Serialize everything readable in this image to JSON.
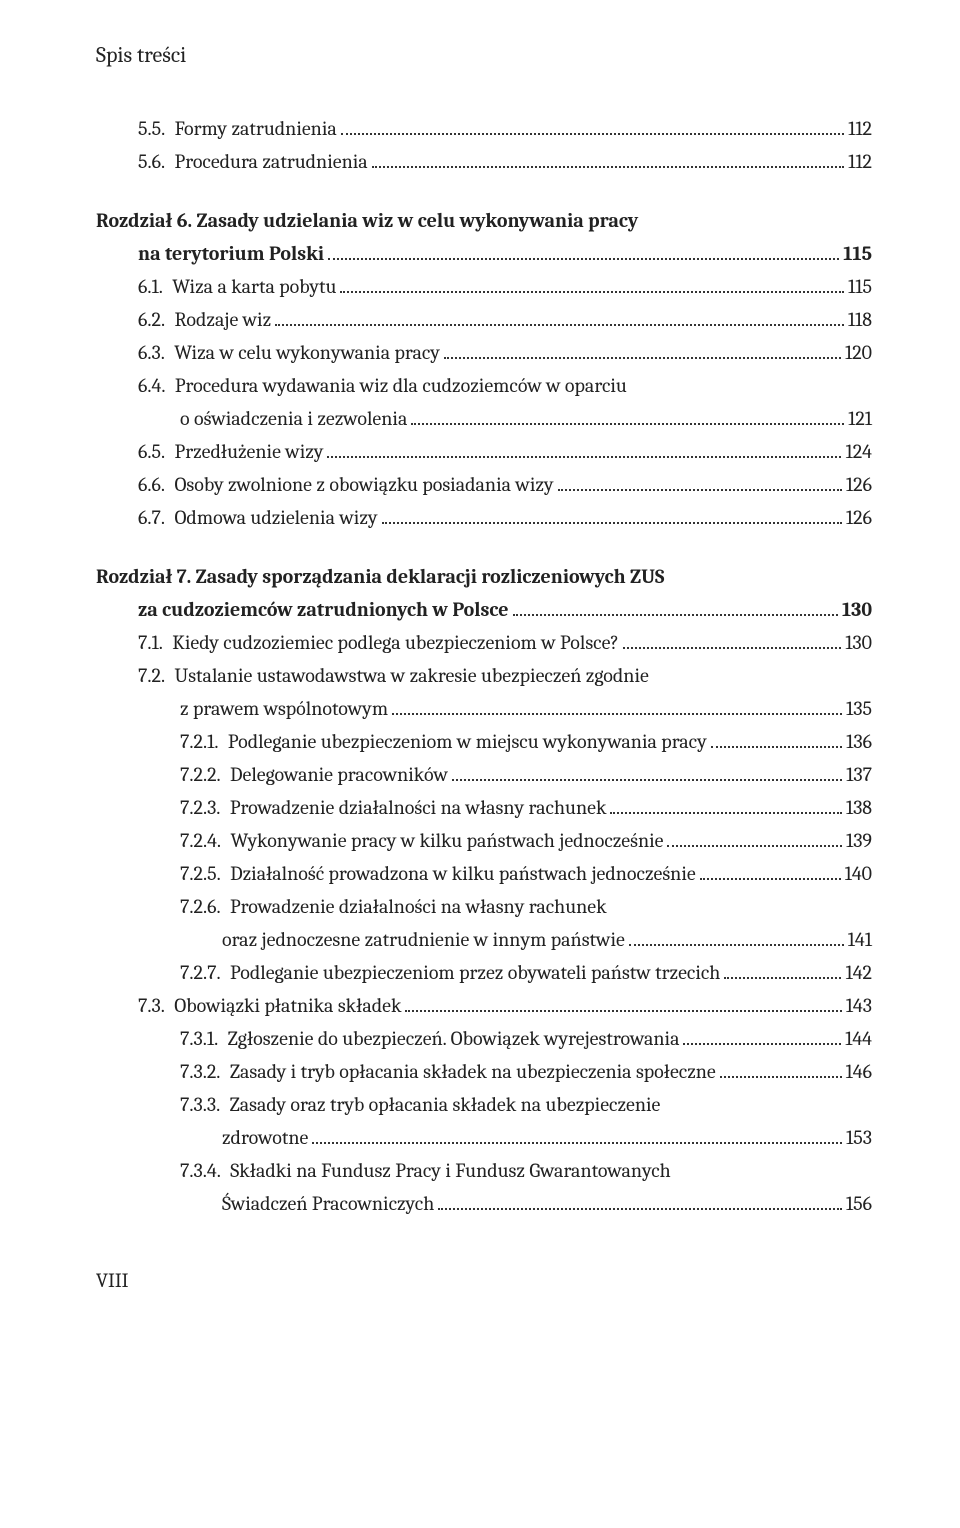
{
  "runningHead": "Spis treści",
  "folio": "VIII",
  "entries": [
    {
      "indent": 1,
      "bold": false,
      "lines": [
        "5.5. Formy zatrudnienia"
      ],
      "page": "112",
      "gapBefore": false
    },
    {
      "indent": 1,
      "bold": false,
      "lines": [
        "5.6. Procedura zatrudnienia"
      ],
      "page": "112",
      "gapBefore": false
    },
    {
      "indent": 0,
      "bold": true,
      "lines": [
        "Rozdział 6. Zasady udzielania wiz w celu wykonywania pracy",
        "na terytorium Polski"
      ],
      "page": "115",
      "gapBefore": true
    },
    {
      "indent": 1,
      "bold": false,
      "lines": [
        "6.1. Wiza a karta pobytu"
      ],
      "page": "115",
      "gapBefore": false
    },
    {
      "indent": 1,
      "bold": false,
      "lines": [
        "6.2. Rodzaje wiz"
      ],
      "page": "118",
      "gapBefore": false
    },
    {
      "indent": 1,
      "bold": false,
      "lines": [
        "6.3. Wiza w celu wykonywania pracy"
      ],
      "page": "120",
      "gapBefore": false
    },
    {
      "indent": 1,
      "bold": false,
      "lines": [
        "6.4. Procedura wydawania wiz dla cudzoziemców w oparciu",
        "o oświadczenia i zezwolenia"
      ],
      "page": "121",
      "gapBefore": false
    },
    {
      "indent": 1,
      "bold": false,
      "lines": [
        "6.5. Przedłużenie wizy"
      ],
      "page": "124",
      "gapBefore": false
    },
    {
      "indent": 1,
      "bold": false,
      "lines": [
        "6.6. Osoby zwolnione z obowiązku posiadania wizy"
      ],
      "page": "126",
      "gapBefore": false
    },
    {
      "indent": 1,
      "bold": false,
      "lines": [
        "6.7. Odmowa udzielenia wizy"
      ],
      "page": "126",
      "gapBefore": false
    },
    {
      "indent": 0,
      "bold": true,
      "lines": [
        "Rozdział 7. Zasady sporządzania deklaracji rozliczeniowych ZUS",
        "za cudzoziemców zatrudnionych w Polsce"
      ],
      "page": "130",
      "gapBefore": true
    },
    {
      "indent": 1,
      "bold": false,
      "lines": [
        "7.1. Kiedy cudzoziemiec podlega ubezpieczeniom w Polsce?"
      ],
      "page": "130",
      "gapBefore": false
    },
    {
      "indent": 1,
      "bold": false,
      "lines": [
        "7.2. Ustalanie ustawodawstwa w zakresie ubezpieczeń zgodnie",
        "z prawem wspólnotowym"
      ],
      "page": "135",
      "gapBefore": false
    },
    {
      "indent": 2,
      "bold": false,
      "lines": [
        "7.2.1. Podleganie ubezpieczeniom w miejscu wykonywania pracy"
      ],
      "page": "136",
      "gapBefore": false
    },
    {
      "indent": 2,
      "bold": false,
      "lines": [
        "7.2.2. Delegowanie pracowników"
      ],
      "page": "137",
      "gapBefore": false
    },
    {
      "indent": 2,
      "bold": false,
      "lines": [
        "7.2.3. Prowadzenie działalności na własny rachunek"
      ],
      "page": "138",
      "gapBefore": false
    },
    {
      "indent": 2,
      "bold": false,
      "lines": [
        "7.2.4. Wykonywanie pracy w kilku państwach jednocześnie"
      ],
      "page": "139",
      "gapBefore": false
    },
    {
      "indent": 2,
      "bold": false,
      "lines": [
        "7.2.5. Działalność prowadzona w kilku państwach jednocześnie"
      ],
      "page": "140",
      "gapBefore": false
    },
    {
      "indent": 2,
      "bold": false,
      "lines": [
        "7.2.6. Prowadzenie działalności na własny rachunek",
        "oraz jednoczesne zatrudnienie w innym państwie"
      ],
      "page": "141",
      "gapBefore": false
    },
    {
      "indent": 2,
      "bold": false,
      "lines": [
        "7.2.7. Podleganie ubezpieczeniom przez obywateli państw trzecich"
      ],
      "page": "142",
      "gapBefore": false
    },
    {
      "indent": 1,
      "bold": false,
      "lines": [
        "7.3. Obowiązki płatnika składek"
      ],
      "page": "143",
      "gapBefore": false
    },
    {
      "indent": 2,
      "bold": false,
      "lines": [
        "7.3.1. Zgłoszenie do ubezpieczeń. Obowiązek wyrejestrowania"
      ],
      "page": "144",
      "gapBefore": false
    },
    {
      "indent": 2,
      "bold": false,
      "lines": [
        "7.3.2. Zasady i tryb opłacania składek na ubezpieczenia społeczne"
      ],
      "page": "146",
      "gapBefore": false
    },
    {
      "indent": 2,
      "bold": false,
      "lines": [
        "7.3.3. Zasady oraz tryb opłacania składek na ubezpieczenie",
        "zdrowotne"
      ],
      "page": "153",
      "gapBefore": false
    },
    {
      "indent": 2,
      "bold": false,
      "lines": [
        "7.3.4. Składki na Fundusz Pracy i Fundusz Gwarantowanych",
        "Świadczeń Pracowniczych"
      ],
      "page": "156",
      "gapBefore": false
    }
  ]
}
